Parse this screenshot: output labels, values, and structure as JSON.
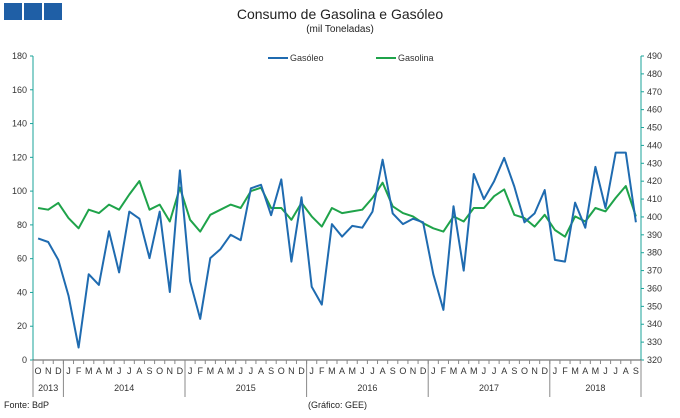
{
  "title": "Consumo de Gasolina e Gasóleo",
  "subtitle": "(mil Toneladas)",
  "footer": {
    "source": "Fonte: BdP",
    "credit": "(Gráfico: GEE)"
  },
  "colors": {
    "gasoleo": "#1f6bb0",
    "gasolina": "#1fa34a",
    "axis": "#1aa39a",
    "header": "#1f5fa6"
  },
  "chart_data": {
    "type": "line",
    "legend_position": "top-center",
    "grid": false,
    "x_labels": [
      "O",
      "N",
      "D",
      "J",
      "F",
      "M",
      "A",
      "M",
      "J",
      "J",
      "A",
      "S",
      "O",
      "N",
      "D",
      "J",
      "F",
      "M",
      "A",
      "M",
      "J",
      "J",
      "A",
      "S",
      "O",
      "N",
      "D",
      "J",
      "F",
      "M",
      "A",
      "M",
      "J",
      "J",
      "A",
      "S",
      "O",
      "N",
      "D",
      "J",
      "F",
      "M",
      "A",
      "M",
      "J",
      "J",
      "A",
      "S",
      "O",
      "N",
      "D",
      "J",
      "F",
      "M",
      "A",
      "M",
      "J",
      "J",
      "A",
      "S"
    ],
    "years": [
      {
        "label": "2013",
        "start": 0,
        "end": 2
      },
      {
        "label": "2014",
        "start": 3,
        "end": 14
      },
      {
        "label": "2015",
        "start": 15,
        "end": 26
      },
      {
        "label": "2016",
        "start": 27,
        "end": 38
      },
      {
        "label": "2017",
        "start": 39,
        "end": 50
      },
      {
        "label": "2018",
        "start": 51,
        "end": 59
      }
    ],
    "left_axis": {
      "min": 0,
      "max": 180,
      "step": 20,
      "ticks": [
        "0",
        "20",
        "40",
        "60",
        "80",
        "100",
        "120",
        "140",
        "160",
        "180"
      ]
    },
    "right_axis": {
      "min": 320,
      "max": 490,
      "step": 10,
      "ticks": [
        "320",
        "330",
        "340",
        "350",
        "360",
        "370",
        "380",
        "390",
        "400",
        "410",
        "420",
        "430",
        "440",
        "450",
        "460",
        "470",
        "480",
        "490"
      ]
    },
    "series": [
      {
        "name": "Gasóleo",
        "axis": "right",
        "values": [
          388,
          386,
          376,
          356,
          327,
          368,
          362,
          392,
          369,
          403,
          399,
          377,
          403,
          358,
          426,
          364,
          343,
          377,
          382,
          390,
          387,
          416,
          418,
          401,
          421,
          375,
          411,
          361,
          351,
          396,
          389,
          395,
          394,
          403,
          432,
          402,
          396,
          399,
          397,
          368,
          348,
          406,
          370,
          424,
          410,
          420,
          433,
          417,
          397,
          402,
          415,
          376,
          375,
          408,
          394,
          428,
          405,
          436,
          436,
          397
        ],
        "values_left": [
          71,
          68,
          52,
          29,
          8,
          52,
          45,
          76,
          52,
          89,
          84,
          60,
          88,
          41,
          112,
          45,
          25,
          61,
          66,
          75,
          72,
          101,
          103,
          87,
          108,
          58,
          97,
          43,
          34,
          81,
          74,
          80,
          79,
          87,
          119,
          87,
          81,
          84,
          82,
          51,
          31,
          91,
          54,
          111,
          96,
          106,
          121,
          103,
          82,
          87,
          104,
          59,
          57,
          93,
          78,
          116,
          90,
          122,
          122,
          82
        ]
      },
      {
        "name": "Gasolina",
        "axis": "left",
        "values": [
          90,
          89,
          93,
          84,
          78,
          89,
          87,
          92,
          89,
          98,
          106,
          89,
          92,
          82,
          102,
          83,
          76,
          86,
          89,
          92,
          90,
          100,
          102,
          90,
          90,
          83,
          93,
          85,
          79,
          90,
          87,
          88,
          89,
          96,
          105,
          91,
          87,
          85,
          81,
          78,
          76,
          85,
          82,
          90,
          90,
          97,
          101,
          86,
          84,
          79,
          86,
          77,
          73,
          85,
          82,
          90,
          88,
          96,
          103,
          85
        ]
      }
    ]
  }
}
